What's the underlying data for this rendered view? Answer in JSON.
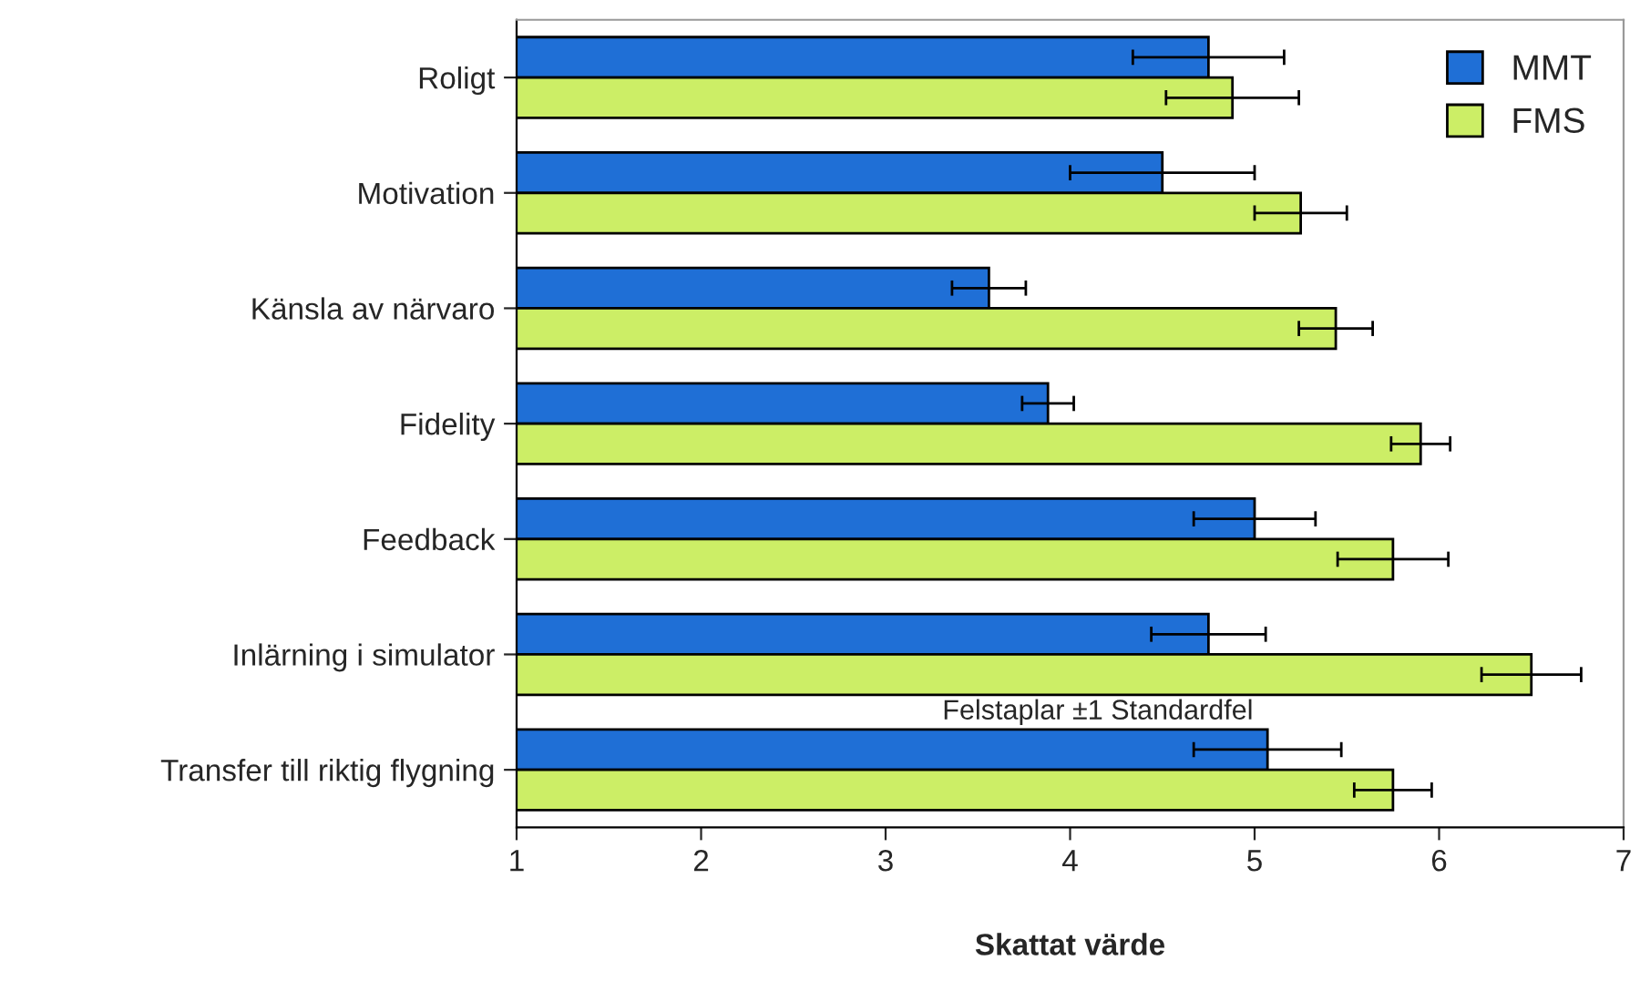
{
  "chart_data": {
    "type": "bar",
    "orientation": "horizontal",
    "xlabel": "Skattat värde",
    "categories": [
      "Roligt",
      "Motivation",
      "Känsla av närvaro",
      "Fidelity",
      "Feedback",
      "Inlärning i simulator",
      "Transfer till riktig flygning"
    ],
    "series": [
      {
        "name": "MMT",
        "color": "#1f6fd6",
        "values": [
          4.75,
          4.5,
          3.56,
          3.88,
          5.0,
          4.75,
          5.07
        ],
        "errors": [
          0.41,
          0.5,
          0.2,
          0.14,
          0.33,
          0.31,
          0.4
        ]
      },
      {
        "name": "FMS",
        "color": "#ccee66",
        "values": [
          4.88,
          5.25,
          5.44,
          5.9,
          5.75,
          6.5,
          5.75
        ],
        "errors": [
          0.36,
          0.25,
          0.2,
          0.16,
          0.3,
          0.27,
          0.21
        ]
      }
    ],
    "xlim": [
      1,
      7
    ],
    "xticks": [
      1,
      2,
      3,
      4,
      5,
      6,
      7
    ],
    "grid": false,
    "legend": "top right",
    "annotations": [
      "Felstaplar ±1 Standardfel"
    ]
  }
}
